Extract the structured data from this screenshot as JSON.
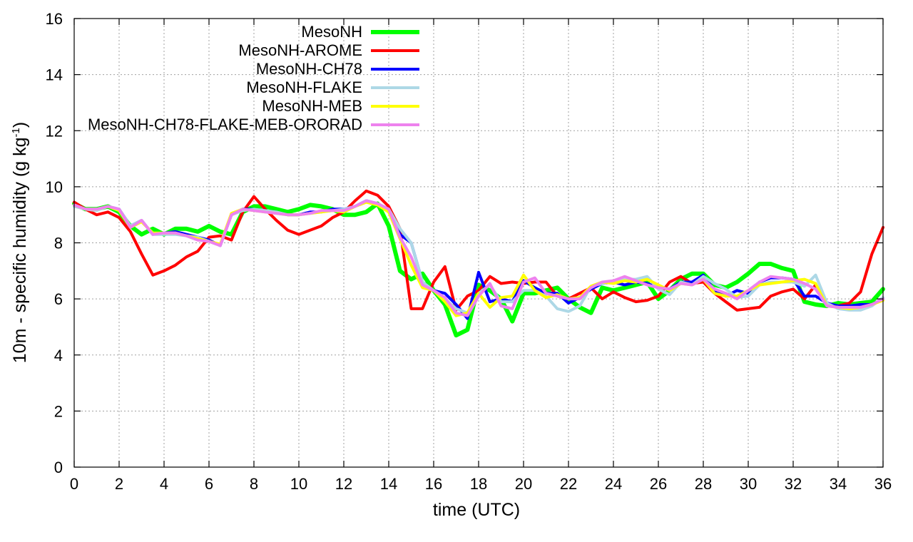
{
  "chart_data": {
    "type": "line",
    "xlabel": "time (UTC)",
    "ylabel_main": "10m - specific humidity (g kg",
    "ylabel_sup": "-1",
    "ylabel_tail": ")",
    "xlim": [
      0,
      36
    ],
    "ylim": [
      0,
      16
    ],
    "xticks": [
      0,
      2,
      4,
      6,
      8,
      10,
      12,
      14,
      16,
      18,
      20,
      22,
      24,
      26,
      28,
      30,
      32,
      34,
      36
    ],
    "yticks": [
      0,
      2,
      4,
      6,
      8,
      10,
      12,
      14,
      16
    ],
    "grid": true,
    "legend_position": "top-left",
    "series": [
      {
        "name": "MesoNH",
        "color": "#00ff00",
        "x": [
          0,
          0.5,
          1,
          1.5,
          2,
          2.5,
          3,
          3.5,
          4,
          4.5,
          5,
          5.5,
          6,
          6.5,
          7,
          7.5,
          8,
          8.5,
          9,
          9.5,
          10,
          10.5,
          11,
          11.5,
          12,
          12.5,
          13,
          13.5,
          14,
          14.5,
          15,
          15.5,
          16,
          16.5,
          17,
          17.5,
          18,
          18.5,
          19,
          19.5,
          20,
          20.5,
          21,
          21.5,
          22,
          22.5,
          23,
          23.5,
          24,
          24.5,
          25,
          25.5,
          26,
          26.5,
          27,
          27.5,
          28,
          28.5,
          29,
          29.5,
          30,
          30.5,
          31,
          31.5,
          32,
          32.5,
          33,
          33.5,
          34,
          34.5,
          35,
          35.5,
          36
        ],
        "y": [
          9.4,
          9.2,
          9.2,
          9.3,
          9.1,
          8.6,
          8.3,
          8.5,
          8.3,
          8.5,
          8.5,
          8.4,
          8.6,
          8.4,
          8.3,
          9.1,
          9.3,
          9.3,
          9.2,
          9.1,
          9.2,
          9.35,
          9.3,
          9.2,
          9.0,
          9.0,
          9.1,
          9.4,
          8.6,
          7.0,
          6.7,
          6.9,
          6.3,
          5.8,
          4.7,
          4.9,
          6.5,
          6.3,
          6.0,
          5.2,
          6.2,
          6.2,
          6.3,
          6.4,
          6.0,
          5.7,
          5.5,
          6.4,
          6.3,
          6.4,
          6.5,
          6.6,
          6.0,
          6.3,
          6.7,
          6.9,
          6.9,
          6.5,
          6.4,
          6.6,
          6.9,
          7.25,
          7.25,
          7.1,
          7.0,
          5.9,
          5.8,
          5.75,
          5.85,
          5.8,
          5.85,
          5.9,
          6.35
        ]
      },
      {
        "name": "MesoNH-AROME",
        "color": "#ff0000",
        "x": [
          0,
          0.5,
          1,
          1.5,
          2,
          2.5,
          3,
          3.5,
          4,
          4.5,
          5,
          5.5,
          6,
          6.5,
          7,
          7.5,
          8,
          8.5,
          9,
          9.5,
          10,
          10.5,
          11,
          11.5,
          12,
          12.5,
          13,
          13.5,
          14,
          14.5,
          15,
          15.5,
          16,
          16.5,
          17,
          17.5,
          18,
          18.5,
          19,
          19.5,
          20,
          20.5,
          21,
          21.5,
          22,
          22.5,
          23,
          23.5,
          24,
          24.5,
          25,
          25.5,
          26,
          26.5,
          27,
          27.5,
          28,
          28.5,
          29,
          29.5,
          30,
          30.5,
          31,
          31.5,
          32,
          32.5,
          33,
          33.5,
          34,
          34.5,
          35,
          35.5,
          36
        ],
        "y": [
          9.45,
          9.2,
          9.0,
          9.1,
          8.9,
          8.4,
          7.6,
          6.85,
          7.0,
          7.2,
          7.5,
          7.7,
          8.2,
          8.25,
          8.1,
          9.1,
          9.65,
          9.2,
          8.8,
          8.45,
          8.3,
          8.45,
          8.6,
          8.9,
          9.1,
          9.5,
          9.85,
          9.7,
          9.3,
          8.5,
          5.65,
          5.65,
          6.6,
          7.15,
          5.6,
          6.1,
          6.3,
          6.8,
          6.55,
          6.6,
          6.55,
          6.6,
          6.6,
          6.1,
          6.0,
          6.2,
          6.4,
          6.0,
          6.25,
          6.05,
          5.9,
          5.95,
          6.1,
          6.6,
          6.8,
          6.55,
          6.6,
          6.2,
          5.9,
          5.6,
          5.65,
          5.7,
          6.1,
          6.25,
          6.35,
          6.0,
          6.5,
          5.8,
          5.75,
          5.85,
          6.25,
          7.6,
          8.55
        ]
      },
      {
        "name": "MesoNH-CH78",
        "color": "#0000ff",
        "x": [
          0,
          0.5,
          1,
          1.5,
          2,
          2.5,
          3,
          3.5,
          4,
          4.5,
          5,
          5.5,
          6,
          6.5,
          7,
          7.5,
          8,
          8.5,
          9,
          9.5,
          10,
          10.5,
          11,
          11.5,
          12,
          12.5,
          13,
          13.5,
          14,
          14.5,
          15,
          15.5,
          16,
          16.5,
          17,
          17.5,
          18,
          18.5,
          19,
          19.5,
          20,
          20.5,
          21,
          21.5,
          22,
          22.5,
          23,
          23.5,
          24,
          24.5,
          25,
          25.5,
          26,
          26.5,
          27,
          27.5,
          28,
          28.5,
          29,
          29.5,
          30,
          30.5,
          31,
          31.5,
          32,
          32.5,
          33,
          33.5,
          34,
          34.5,
          35,
          35.5,
          36
        ],
        "y": [
          9.35,
          9.2,
          9.2,
          9.3,
          9.2,
          8.6,
          8.8,
          8.3,
          8.35,
          8.4,
          8.3,
          8.2,
          8.1,
          7.9,
          9.0,
          9.2,
          9.2,
          9.15,
          9.1,
          9.0,
          9.0,
          9.1,
          9.1,
          9.2,
          9.2,
          9.3,
          9.5,
          9.4,
          9.2,
          8.3,
          8.0,
          6.6,
          6.3,
          6.2,
          5.8,
          5.3,
          6.95,
          5.9,
          6.0,
          5.9,
          6.65,
          6.4,
          6.2,
          6.2,
          5.85,
          6.05,
          6.35,
          6.55,
          6.6,
          6.5,
          6.6,
          6.55,
          6.4,
          6.35,
          6.6,
          6.6,
          6.85,
          6.3,
          6.1,
          6.3,
          6.2,
          6.6,
          6.75,
          6.75,
          6.7,
          6.1,
          6.1,
          5.85,
          5.75,
          5.75,
          5.8,
          5.8,
          6.0
        ]
      },
      {
        "name": "MesoNH-FLAKE",
        "color": "#add8e6",
        "x": [
          0,
          0.5,
          1,
          1.5,
          2,
          2.5,
          3,
          3.5,
          4,
          4.5,
          5,
          5.5,
          6,
          6.5,
          7,
          7.5,
          8,
          8.5,
          9,
          9.5,
          10,
          10.5,
          11,
          11.5,
          12,
          12.5,
          13,
          13.5,
          14,
          14.5,
          15,
          15.5,
          16,
          16.5,
          17,
          17.5,
          18,
          18.5,
          19,
          19.5,
          20,
          20.5,
          21,
          21.5,
          22,
          22.5,
          23,
          23.5,
          24,
          24.5,
          25,
          25.5,
          26,
          26.5,
          27,
          27.5,
          28,
          28.5,
          29,
          29.5,
          30,
          30.5,
          31,
          31.5,
          32,
          32.5,
          33,
          33.5,
          34,
          34.5,
          35,
          35.5,
          36
        ],
        "y": [
          9.3,
          9.2,
          9.15,
          9.3,
          9.2,
          8.6,
          8.8,
          8.3,
          8.3,
          8.3,
          8.25,
          8.2,
          8.05,
          7.9,
          9.0,
          9.15,
          9.2,
          9.15,
          9.1,
          9.0,
          9.0,
          9.05,
          9.1,
          9.15,
          9.2,
          9.3,
          9.45,
          9.4,
          9.2,
          8.5,
          8.0,
          6.6,
          6.3,
          6.0,
          5.65,
          5.5,
          6.2,
          6.5,
          5.9,
          5.9,
          6.3,
          6.3,
          6.1,
          5.65,
          5.55,
          5.75,
          6.45,
          6.55,
          6.6,
          6.7,
          6.7,
          6.8,
          6.35,
          6.15,
          6.6,
          6.5,
          6.8,
          6.55,
          6.35,
          6.05,
          6.1,
          6.5,
          6.6,
          6.6,
          6.6,
          6.45,
          6.85,
          5.85,
          5.65,
          5.6,
          5.6,
          5.75,
          6.05
        ]
      },
      {
        "name": "MesoNH-MEB",
        "color": "#ffff00",
        "x": [
          0,
          0.5,
          1,
          1.5,
          2,
          2.5,
          3,
          3.5,
          4,
          4.5,
          5,
          5.5,
          6,
          6.5,
          7,
          7.5,
          8,
          8.5,
          9,
          9.5,
          10,
          10.5,
          11,
          11.5,
          12,
          12.5,
          13,
          13.5,
          14,
          14.5,
          15,
          15.5,
          16,
          16.5,
          17,
          17.5,
          18,
          18.5,
          19,
          19.5,
          20,
          20.5,
          21,
          21.5,
          22,
          22.5,
          23,
          23.5,
          24,
          24.5,
          25,
          25.5,
          26,
          26.5,
          27,
          27.5,
          28,
          28.5,
          29,
          29.5,
          30,
          30.5,
          31,
          31.5,
          32,
          32.5,
          33,
          33.5,
          34,
          34.5,
          35,
          35.5,
          36
        ],
        "y": [
          9.35,
          9.2,
          9.2,
          9.3,
          9.15,
          8.55,
          8.75,
          8.35,
          8.35,
          8.35,
          8.25,
          8.15,
          8.05,
          7.95,
          9.05,
          9.2,
          9.15,
          9.1,
          9.05,
          9.0,
          9.0,
          9.05,
          9.1,
          9.15,
          9.1,
          9.3,
          9.45,
          9.35,
          9.1,
          8.15,
          7.2,
          6.4,
          6.3,
          5.9,
          5.4,
          5.5,
          6.2,
          5.7,
          6.05,
          6.1,
          6.85,
          6.3,
          6.05,
          6.15,
          6.0,
          6.05,
          6.45,
          6.6,
          6.55,
          6.65,
          6.6,
          6.7,
          6.5,
          6.3,
          6.55,
          6.5,
          6.7,
          6.2,
          6.1,
          6.1,
          6.3,
          6.5,
          6.55,
          6.6,
          6.65,
          6.7,
          6.55,
          5.75,
          5.7,
          5.65,
          5.7,
          5.8,
          5.95
        ]
      },
      {
        "name": "MesoNH-CH78-FLAKE-MEB-ORORAD",
        "color": "#ee82ee",
        "x": [
          0,
          0.5,
          1,
          1.5,
          2,
          2.5,
          3,
          3.5,
          4,
          4.5,
          5,
          5.5,
          6,
          6.5,
          7,
          7.5,
          8,
          8.5,
          9,
          9.5,
          10,
          10.5,
          11,
          11.5,
          12,
          12.5,
          13,
          13.5,
          14,
          14.5,
          15,
          15.5,
          16,
          16.5,
          17,
          17.5,
          18,
          18.5,
          19,
          19.5,
          20,
          20.5,
          21,
          21.5,
          22,
          22.5,
          23,
          23.5,
          24,
          24.5,
          25,
          25.5,
          26,
          26.5,
          27,
          27.5,
          28,
          28.5,
          29,
          29.5,
          30,
          30.5,
          31,
          31.5,
          32,
          32.5,
          33,
          33.5,
          34,
          34.5,
          35,
          35.5,
          36
        ],
        "y": [
          9.35,
          9.2,
          9.2,
          9.3,
          9.2,
          8.55,
          8.8,
          8.3,
          8.35,
          8.35,
          8.25,
          8.1,
          8.05,
          7.9,
          9.0,
          9.2,
          9.15,
          9.1,
          9.05,
          9.0,
          9.0,
          9.05,
          9.15,
          9.15,
          9.15,
          9.3,
          9.5,
          9.4,
          9.2,
          8.2,
          7.5,
          6.5,
          6.3,
          6.05,
          5.5,
          5.4,
          6.1,
          6.55,
          5.75,
          5.65,
          6.6,
          6.75,
          6.2,
          6.1,
          6.0,
          6.0,
          6.4,
          6.6,
          6.65,
          6.8,
          6.65,
          6.5,
          6.4,
          6.35,
          6.55,
          6.5,
          6.7,
          6.35,
          6.2,
          6.0,
          6.3,
          6.6,
          6.8,
          6.75,
          6.7,
          6.55,
          6.35,
          5.75,
          5.7,
          5.7,
          5.7,
          5.8,
          6.0
        ]
      }
    ]
  }
}
